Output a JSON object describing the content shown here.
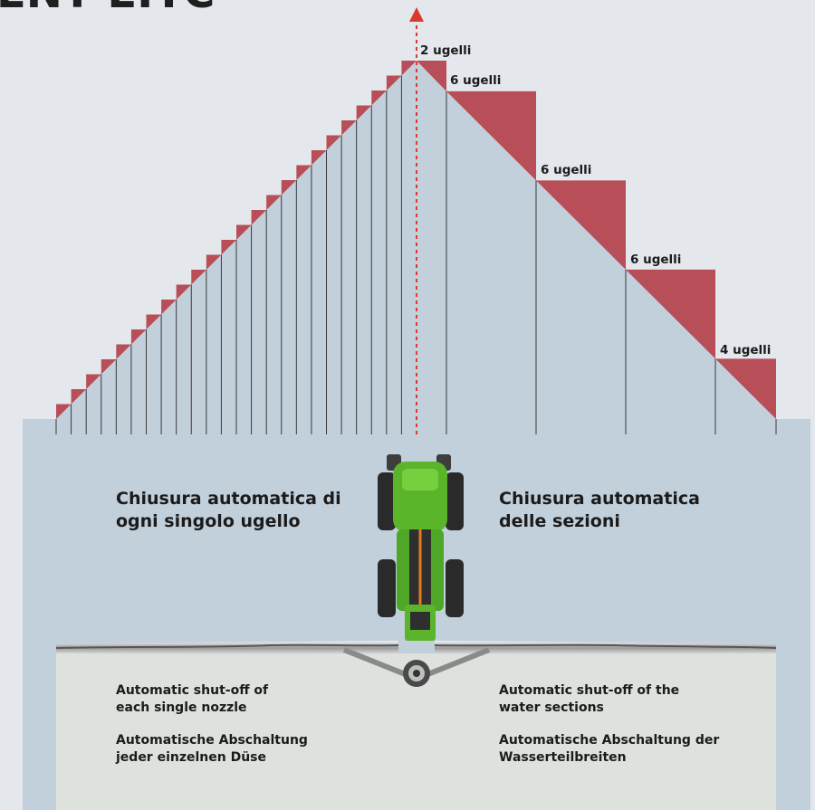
{
  "header_fragment": "ENT EIYC",
  "nozzle_labels": [
    "2 ugelli",
    "6 ugelli",
    "6 ugelli",
    "6 ugelli",
    "4 ugelli"
  ],
  "left": {
    "title_it": "Chiusura automatica di ogni singolo ugello",
    "subtitle_en": "Automatic shut-off of each single nozzle",
    "subtitle_de": "Automatische Abschaltung jeder einzelnen Düse"
  },
  "right": {
    "title_it": "Chiusura automatica delle sezioni",
    "subtitle_en": "Automatic shut-off of the water sections",
    "subtitle_de": "Automatische Abschaltung der Wasserteilbreiten"
  },
  "colors": {
    "background": "#e4e8ec",
    "field": "#c2d0dc",
    "lower_panel": "#dde3dc",
    "step_fill": "#b84e58",
    "arrow": "#d93a2e",
    "tractor_green": "#5bb52b"
  }
}
